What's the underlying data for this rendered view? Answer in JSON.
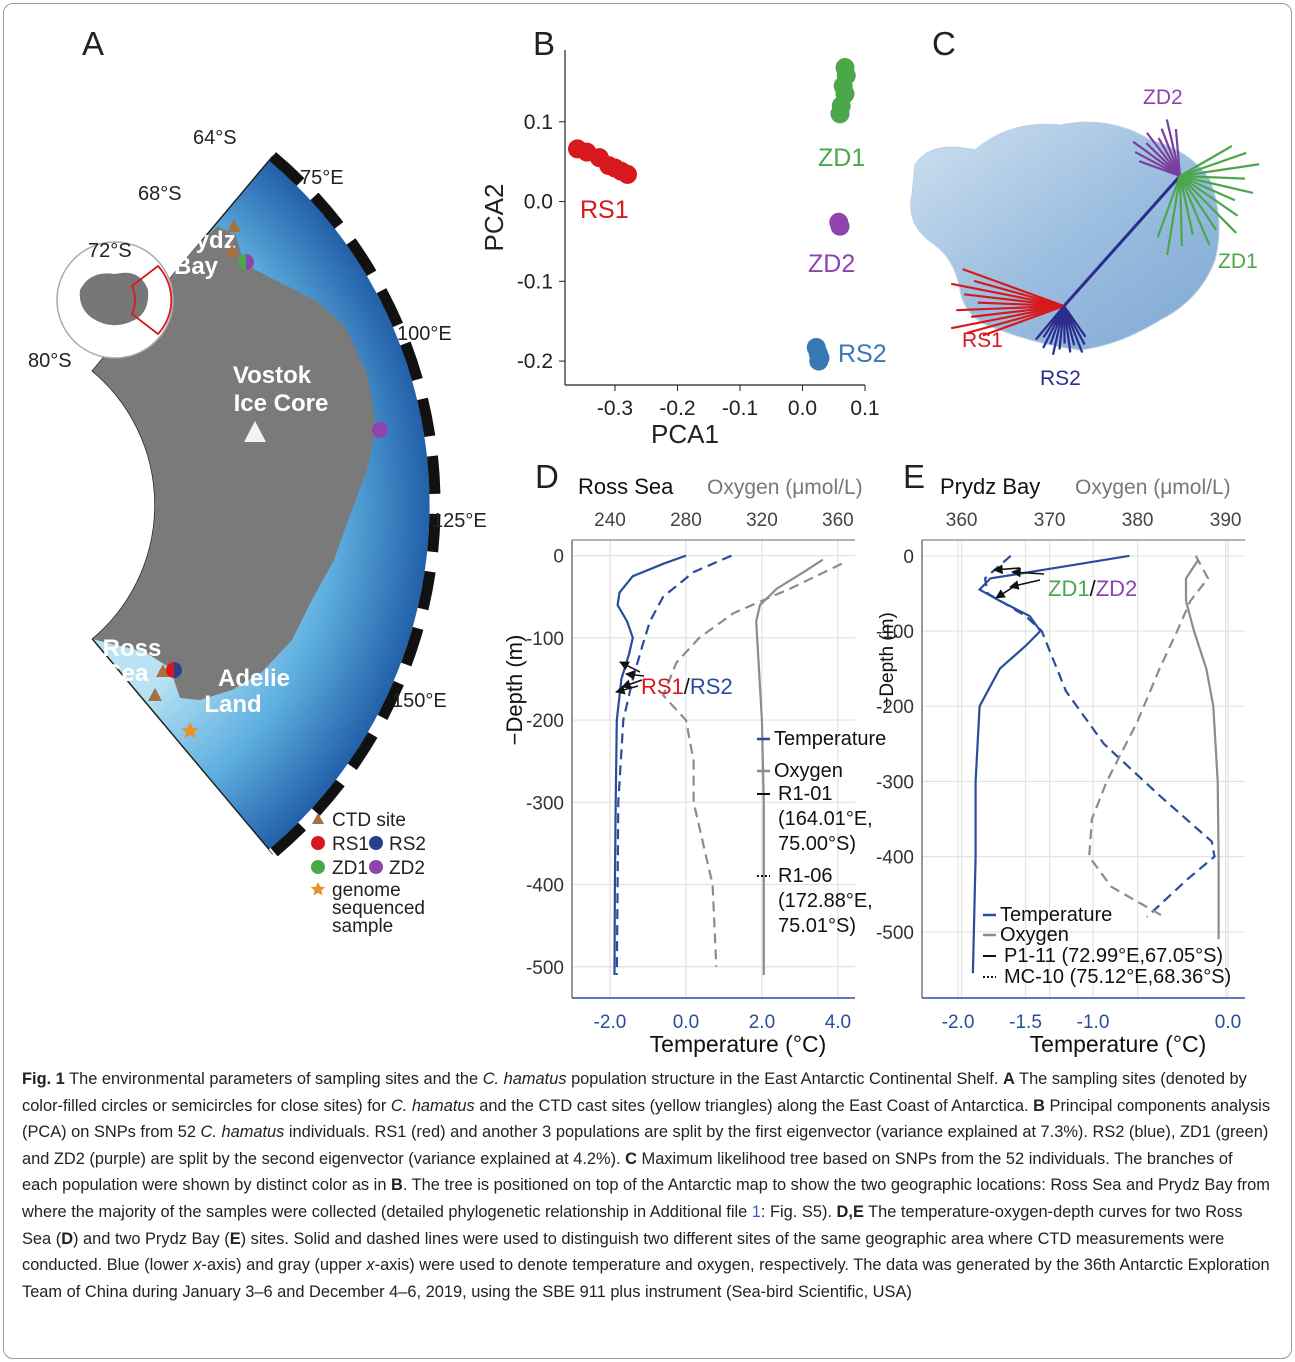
{
  "panels": {
    "a": "A",
    "b": "B",
    "c": "C",
    "d": "D",
    "e": "E"
  },
  "map": {
    "lat_labels": [
      "64°S",
      "68°S",
      "72°S",
      "80°S"
    ],
    "lon_labels": [
      "75°E",
      "100°E",
      "125°E",
      "150°E"
    ],
    "places": [
      [
        "Prydz",
        "Bay"
      ],
      [
        "Vostok",
        "Ice Core"
      ],
      [
        "Ross",
        "Sea"
      ],
      [
        "Adelie",
        "Land"
      ]
    ],
    "legend": {
      "ctd": "CTD site",
      "rs1": "RS1",
      "rs2": "RS2",
      "zd1": "ZD1",
      "zd2": "ZD2",
      "genome": [
        "genome",
        "sequenced",
        "sample"
      ]
    }
  },
  "tree": {
    "labels": [
      "ZD2",
      "ZD1",
      "RS1",
      "RS2"
    ]
  },
  "chart_data": [
    {
      "type": "scatter",
      "xlabel": "PCA1",
      "ylabel": "PCA2",
      "xlim": [
        -0.38,
        0.1
      ],
      "ylim": [
        -0.23,
        0.19
      ],
      "xticks": [
        -0.3,
        -0.2,
        -0.1,
        {
          "value": 0,
          "label": "0.0"
        },
        0.1
      ],
      "yticks": [
        -0.2,
        -0.1,
        {
          "value": 0,
          "label": "0.0"
        },
        0.1
      ],
      "series": [
        {
          "name": "RS1",
          "color": "#d7191c",
          "x": [
            -0.36,
            -0.345,
            -0.325,
            -0.31,
            -0.3,
            -0.29,
            -0.28
          ],
          "values": [
            0.066,
            0.062,
            0.055,
            0.045,
            0.042,
            0.038,
            0.034
          ]
        },
        {
          "name": "ZD1",
          "color": "#4aa84a",
          "x": [
            0.068,
            0.07,
            0.065,
            0.068,
            0.062,
            0.06
          ],
          "values": [
            0.168,
            0.158,
            0.145,
            0.135,
            0.12,
            0.11
          ]
        },
        {
          "name": "ZD2",
          "color": "#8e44ad",
          "x": [
            0.058,
            0.06
          ],
          "values": [
            -0.026,
            -0.031
          ]
        },
        {
          "name": "RS2",
          "color": "#3a78b5",
          "x": [
            0.022,
            0.025,
            0.028,
            0.026
          ],
          "values": [
            -0.183,
            -0.19,
            -0.196,
            -0.2
          ]
        }
      ]
    },
    {
      "type": "line",
      "title": "Ross Sea",
      "x2label": "Oxygen (μmol/L)",
      "xlabel": "Temperature (°C)",
      "ylabel": "−Depth (m)",
      "xlim": [
        -3.0,
        4.45
      ],
      "x2lim": [
        220,
        369
      ],
      "ylim": [
        -538,
        19
      ],
      "xticks": [
        {
          "value": -2,
          "label": "-2.0"
        },
        {
          "value": 0,
          "label": "0.0"
        },
        {
          "value": 2,
          "label": "2.0"
        },
        {
          "value": 4,
          "label": "4.0"
        }
      ],
      "x2ticks": [
        240,
        280,
        320,
        360
      ],
      "yticks": [
        0,
        -100,
        -200,
        -300,
        -400,
        -500
      ],
      "grid": true,
      "annotation": [
        "RS1",
        "/",
        "RS2"
      ],
      "legend_colors": [
        {
          "label": "Temperature",
          "color": "#2a4d9b"
        },
        {
          "label": "Oxygen",
          "color": "#8c8c8c"
        }
      ],
      "legend_lines": [
        {
          "label": [
            "R1-01",
            "(164.01°E,",
            "75.00°S)"
          ],
          "dash": "solid"
        },
        {
          "label": [
            "R1-06",
            "(172.88°E,",
            "75.01°S)"
          ],
          "dash": "dotted"
        }
      ],
      "series": [
        {
          "color": "#2a4d9b",
          "dash": "solid",
          "y": [
            0,
            -10,
            -25,
            -45,
            -60,
            -80,
            -100,
            -120,
            -150,
            -200,
            -300,
            -400,
            -510
          ],
          "values": [
            0.0,
            -0.6,
            -1.4,
            -1.75,
            -1.8,
            -1.55,
            -1.4,
            -1.5,
            -1.7,
            -1.82,
            -1.85,
            -1.87,
            -1.88
          ]
        },
        {
          "color": "#2a4d9b",
          "dash": "dashed",
          "y": [
            0,
            -20,
            -50,
            -80,
            -110,
            -150,
            -200,
            -300,
            -400,
            -510
          ],
          "values": [
            1.2,
            0.2,
            -0.6,
            -0.95,
            -1.15,
            -1.4,
            -1.65,
            -1.78,
            -1.8,
            -1.82
          ]
        },
        {
          "color": "#8c8c8c",
          "dash": "solid",
          "axis": "x2",
          "y": [
            -5,
            -20,
            -40,
            -60,
            -80,
            -120,
            -200,
            -300,
            -400,
            -510
          ],
          "values": [
            352,
            342,
            328,
            319,
            317,
            318,
            320,
            321,
            321,
            321
          ]
        },
        {
          "color": "#8c8c8c",
          "dash": "dashed",
          "axis": "x2",
          "y": [
            -10,
            -40,
            -70,
            -100,
            -130,
            -170,
            -200,
            -250,
            -300,
            -400,
            -500
          ],
          "values": [
            362,
            335,
            305,
            287,
            275,
            268,
            280,
            284,
            284,
            294,
            296
          ]
        }
      ]
    },
    {
      "type": "line",
      "title": "Prydz Bay",
      "x2label": "Oxygen (μmol/L)",
      "xlabel": "Temperature  (°C)",
      "ylabel": "−Depth (m)",
      "xlim": [
        -2.267,
        0.126
      ],
      "x2lim": [
        355.5,
        392.2
      ],
      "ylim": [
        -588,
        21
      ],
      "xticks": [
        {
          "value": -2,
          "label": "-2.0"
        },
        -1.5,
        {
          "value": -1,
          "label": "-1.0"
        },
        {
          "value": 0,
          "label": "0.0"
        }
      ],
      "x2ticks": [
        360,
        370,
        380,
        390
      ],
      "yticks": [
        0,
        -100,
        -200,
        -300,
        -400,
        -500
      ],
      "grid": true,
      "annotation": [
        "ZD1",
        "/",
        "ZD2"
      ],
      "legend_colors": [
        {
          "label": "Temperature",
          "color": "#2a4d9b"
        },
        {
          "label": "Oxygen",
          "color": "#8c8c8c"
        }
      ],
      "legend_lines": [
        {
          "label": [
            "P1-11  (72.99°E,67.05°S)"
          ],
          "dash": "solid"
        },
        {
          "label": [
            "MC-10 (75.12°E,68.36°S)"
          ],
          "dash": "dotted"
        }
      ],
      "series": [
        {
          "color": "#2a4d9b",
          "dash": "solid",
          "y": [
            0,
            -15,
            -30,
            -45,
            -60,
            -80,
            -100,
            -120,
            -150,
            -200,
            -300,
            -400,
            -555
          ],
          "values": [
            -0.73,
            -1.24,
            -1.76,
            -1.84,
            -1.69,
            -1.47,
            -1.39,
            -1.5,
            -1.69,
            -1.84,
            -1.87,
            -1.87,
            -1.89
          ]
        },
        {
          "color": "#2a4d9b",
          "dash": "dashed",
          "y": [
            0,
            -30,
            -50,
            -80,
            -100,
            -180,
            -250,
            -320,
            -380,
            -400,
            -430,
            -480
          ],
          "values": [
            -1.61,
            -1.8,
            -1.78,
            -1.5,
            -1.38,
            -1.2,
            -0.92,
            -0.5,
            -0.12,
            -0.1,
            -0.3,
            -0.6
          ]
        },
        {
          "color": "#8c8c8c",
          "dash": "solid",
          "axis": "x2",
          "y": [
            -5,
            -30,
            -60,
            -100,
            -150,
            -200,
            -300,
            -400,
            -510
          ],
          "values": [
            386.9,
            385.5,
            385.5,
            386.4,
            387.8,
            388.6,
            389.1,
            389.2,
            389.2
          ]
        },
        {
          "color": "#8c8c8c",
          "dash": "dashed",
          "axis": "x2",
          "y": [
            0,
            -30,
            -60,
            -100,
            -150,
            -220,
            -300,
            -350,
            -400,
            -440,
            -480
          ],
          "values": [
            386.6,
            388.0,
            386.0,
            384.5,
            382.5,
            380,
            376.5,
            374.8,
            374.5,
            377,
            383
          ]
        }
      ]
    }
  ],
  "caption": {
    "parts": [
      "Fig. 1",
      "  The environmental parameters of sampling sites and the ",
      "C. hamatus",
      " population structure in the East Antarctic Continental Shelf. ",
      "A",
      " The sampling sites (denoted by color-filled circles or semicircles for close sites) for ",
      "C. hamatus",
      " and the CTD cast sites (yellow triangles) along the East Coast of Antarctica. ",
      "B",
      " Principal components analysis (PCA) on SNPs from 52 ",
      "C. hamatus",
      " individuals. RS1 (red) and another 3 populations are split by the first eigenvector (variance explained at 7.3%). RS2 (blue), ZD1 (green) and ZD2 (purple) are split by the second eigenvector (variance explained at 4.2%). ",
      "C",
      " Maximum likelihood tree based on SNPs from the 52 individuals. The branches of each population were shown by distinct color as in ",
      "B",
      ". The tree is positioned on top of the Antarctic map to show the two geographic locations: Ross Sea and Prydz Bay from where the majority of the samples were collected (detailed phylogenetic relationship in Additional file ",
      "1",
      ": Fig. S5). ",
      "D",
      ",",
      "E",
      " The temperature-oxygen-depth curves for two Ross Sea (",
      "D",
      ") and two Prydz Bay (",
      "E",
      ") sites. Solid and dashed lines were used to distinguish two different sites of the same geographic area where CTD measurements were conducted. Blue (lower ",
      "x",
      "-axis) and gray (upper ",
      "x",
      "-axis) were used to denote temperature and oxygen, respectively. The data was generated by the 36th Antarctic Exploration Team of China during January 3–6 and December 4–6, 2019, using the SBE 911 plus instrument (Sea-bird Scientific, USA)"
    ]
  }
}
